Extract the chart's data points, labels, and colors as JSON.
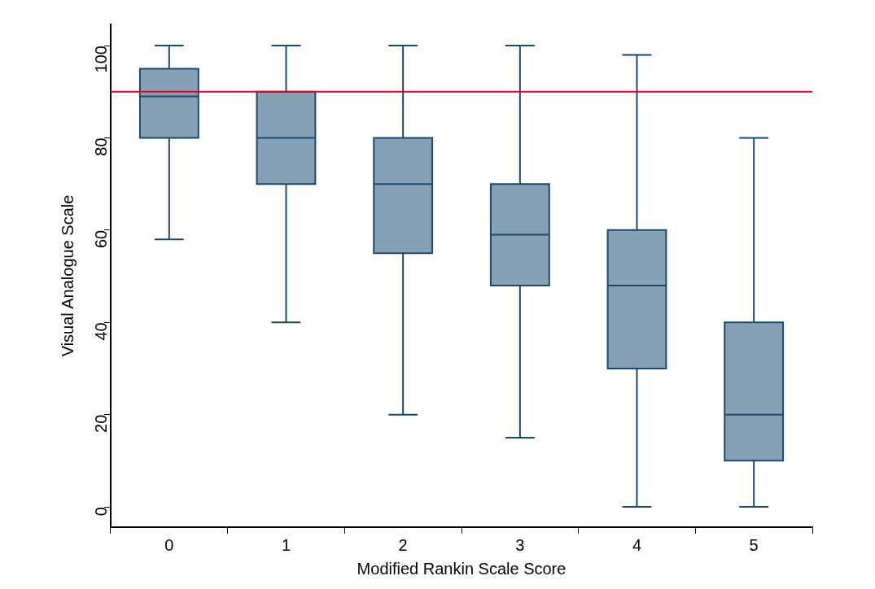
{
  "chart_data": {
    "type": "box",
    "xlabel": "Modified Rankin Scale Score",
    "ylabel": "Visual Analogue Scale",
    "categories": [
      "0",
      "1",
      "2",
      "3",
      "4",
      "5"
    ],
    "boxes": [
      {
        "low": 58,
        "q1": 80,
        "median": 89,
        "q3": 95,
        "high": 100
      },
      {
        "low": 40,
        "q1": 70,
        "median": 80,
        "q3": 90,
        "high": 100
      },
      {
        "low": 20,
        "q1": 55,
        "median": 70,
        "q3": 80,
        "high": 100
      },
      {
        "low": 15,
        "q1": 48,
        "median": 59,
        "q3": 70,
        "high": 100
      },
      {
        "low": 0,
        "q1": 30,
        "median": 48,
        "q3": 60,
        "high": 98
      },
      {
        "low": 0,
        "q1": 10,
        "median": 20,
        "q3": 40,
        "high": 80
      }
    ],
    "color": "#86a0b5",
    "ylim": [
      -4.4,
      104.6
    ],
    "yticks": [
      0,
      20,
      40,
      60,
      80,
      100
    ],
    "ref_lines": [
      {
        "axis": "y",
        "value": 90,
        "color": "#c8102e"
      }
    ],
    "grid": false,
    "legend": false
  }
}
